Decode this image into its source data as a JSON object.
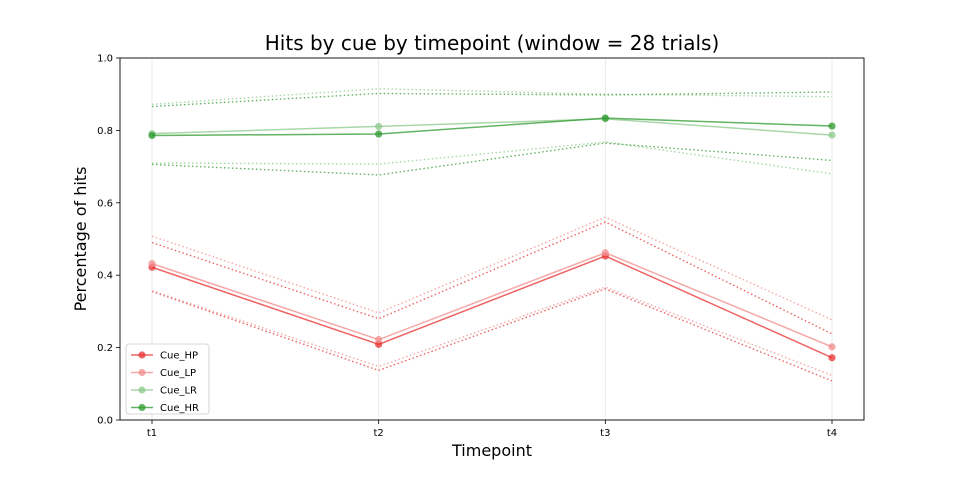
{
  "chart_data": {
    "type": "line",
    "title": "Hits by cue by timepoint (window = 28 trials)",
    "xlabel": "Timepoint",
    "ylabel": "Percentage of hits",
    "categories": [
      "t1",
      "t2",
      "t3",
      "t4"
    ],
    "ylim": [
      0.0,
      1.0
    ],
    "yticks": [
      "0.0",
      "0.2",
      "0.4",
      "0.6",
      "0.8",
      "1.0"
    ],
    "grid": "x-only, faint vertical lines",
    "legend_position": "lower-left",
    "series": [
      {
        "name": "Cue_HP",
        "color": "#e83030",
        "opacity": 0.75,
        "values": [
          0.422,
          0.209,
          0.453,
          0.172
        ],
        "upper": [
          0.49,
          0.28,
          0.547,
          0.238
        ],
        "lower": [
          0.355,
          0.137,
          0.362,
          0.108
        ]
      },
      {
        "name": "Cue_LP",
        "color": "#f28b8b",
        "opacity": 0.75,
        "values": [
          0.432,
          0.222,
          0.462,
          0.202
        ],
        "upper": [
          0.508,
          0.296,
          0.56,
          0.277
        ],
        "lower": [
          0.357,
          0.148,
          0.367,
          0.123
        ]
      },
      {
        "name": "Cue_LR",
        "color": "#8cc98c",
        "opacity": 0.75,
        "values": [
          0.791,
          0.811,
          0.832,
          0.787
        ],
        "upper": [
          0.872,
          0.915,
          0.9,
          0.893
        ],
        "lower": [
          0.71,
          0.707,
          0.768,
          0.68
        ]
      },
      {
        "name": "Cue_HR",
        "color": "#2e9a2e",
        "opacity": 0.75,
        "values": [
          0.786,
          0.79,
          0.834,
          0.812
        ],
        "upper": [
          0.866,
          0.902,
          0.898,
          0.906
        ],
        "lower": [
          0.706,
          0.677,
          0.765,
          0.717
        ]
      }
    ]
  }
}
